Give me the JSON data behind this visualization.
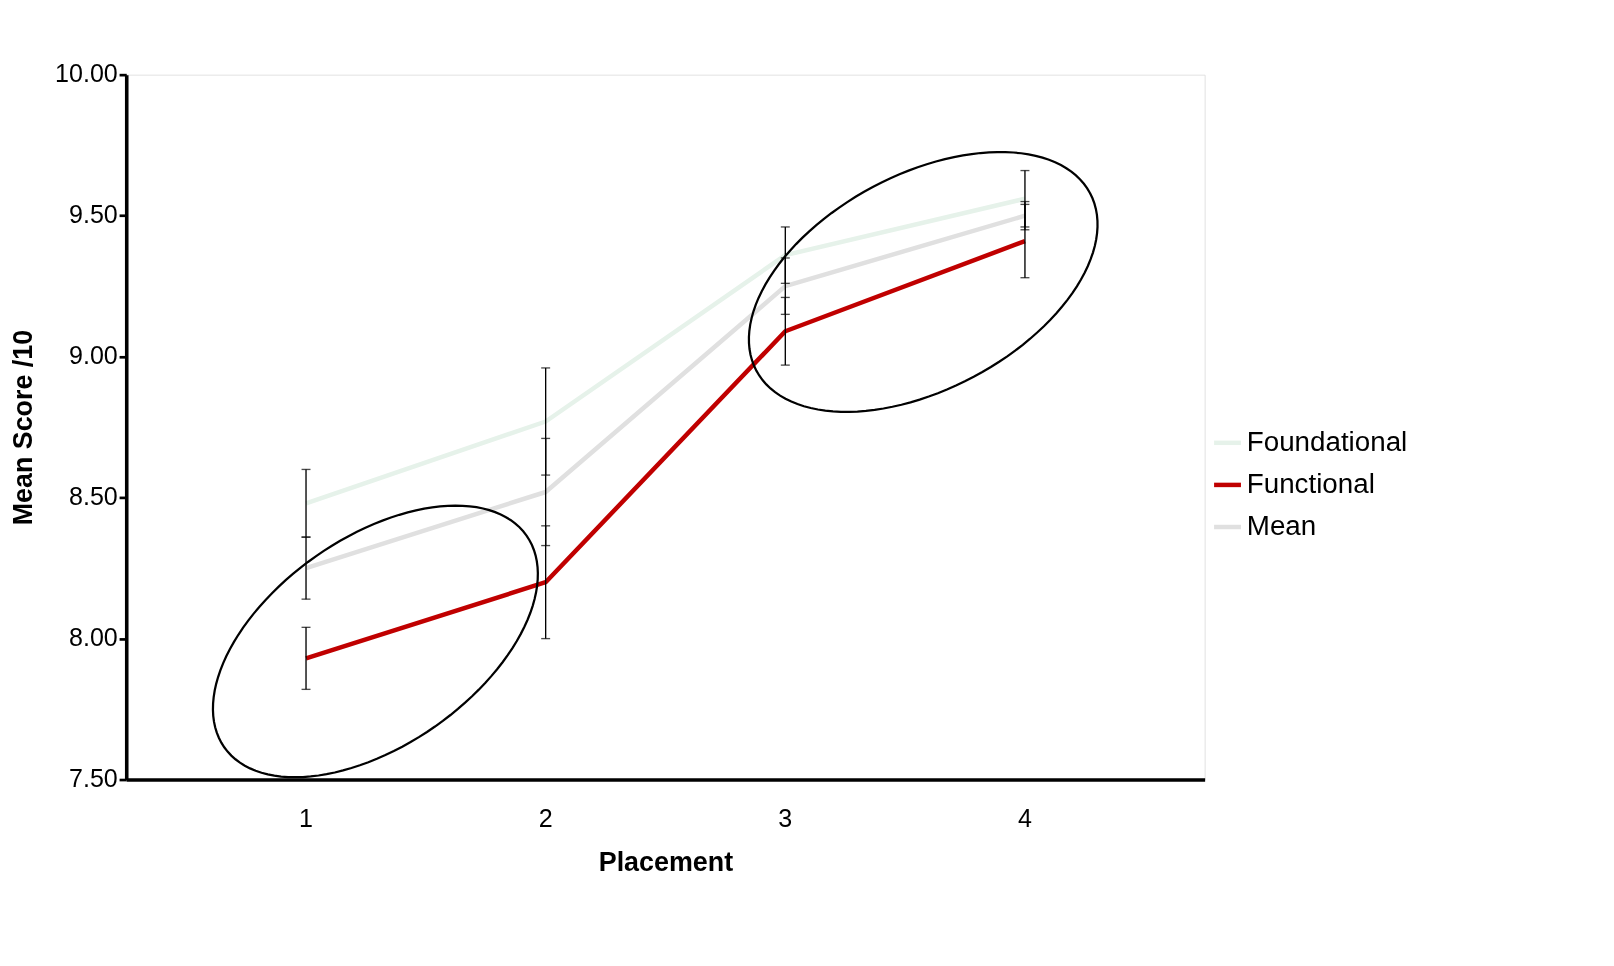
{
  "chart_data": {
    "type": "line",
    "xlabel": "Placement",
    "ylabel": "Mean Score /10",
    "categories": [
      "1",
      "2",
      "3",
      "4"
    ],
    "ylim": [
      7.5,
      10
    ],
    "yticks": [
      {
        "value": 7.5,
        "label": "7.50"
      },
      {
        "value": 8,
        "label": "8.00"
      },
      {
        "value": 8.5,
        "label": "8.50"
      },
      {
        "value": 9,
        "label": "9.00"
      },
      {
        "value": 9.5,
        "label": "9.50"
      },
      {
        "value": 10,
        "label": "10.00"
      }
    ],
    "series": [
      {
        "name": "Foundational",
        "color": "#e6f2ea",
        "values": [
          8.48,
          8.77,
          9.36,
          9.56
        ],
        "errors": [
          0.12,
          0.19,
          0.1,
          0.1
        ]
      },
      {
        "name": "Functional",
        "color": "#c00000",
        "values": [
          7.93,
          8.2,
          9.09,
          9.41
        ],
        "errors": [
          0.11,
          0.2,
          0.12,
          0.13
        ]
      },
      {
        "name": "Mean",
        "color": "#e0e0e0",
        "values": [
          8.25,
          8.52,
          9.25,
          9.5
        ],
        "errors": [
          0.11,
          0.19,
          0.1,
          0.05
        ]
      }
    ],
    "legend": "right",
    "grid": false,
    "marker": "none",
    "line_style": "solid"
  }
}
